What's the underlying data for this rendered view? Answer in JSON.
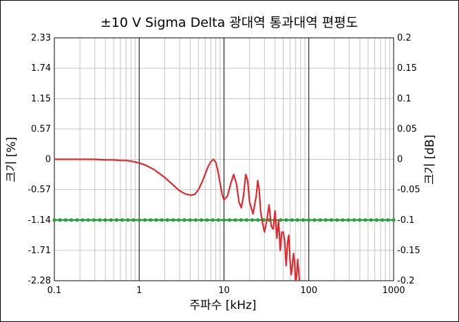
{
  "chart_data": {
    "type": "line",
    "title": "±10 V Sigma Delta 광대역 통과대역 편평도",
    "xlabel": "주파수 [kHz]",
    "ylabel_left": "크기 [%]",
    "ylabel_right": "크기 [dB]",
    "x_scale": "log",
    "xlim": [
      0.1,
      1000
    ],
    "x_ticks": [
      0.1,
      1,
      10,
      100,
      1000
    ],
    "x_tick_labels": [
      "0.1",
      "1",
      "10",
      "100",
      "1000"
    ],
    "y_left_ticks": [
      "2.33",
      "1.74",
      "1.15",
      "0.57",
      "0",
      "-0.57",
      "-1.14",
      "-1.71",
      "-2.28"
    ],
    "y_right_lim": [
      -0.2,
      0.2
    ],
    "y_right_ticks": [
      0.2,
      0.15,
      0.1,
      0.05,
      0,
      -0.05,
      -0.1,
      -0.15,
      -0.2
    ],
    "y_right_tick_labels": [
      "0.2",
      "0.15",
      "0.1",
      "0.05",
      "0",
      "-0.05",
      "-0.1",
      "-0.15",
      "-0.2"
    ],
    "grid": true,
    "series": [
      {
        "color": "#e0282e",
        "axis": "right",
        "x": [
          0.1,
          0.15,
          0.2,
          0.3,
          0.4,
          0.5,
          0.6,
          0.7,
          0.8,
          1.0,
          1.2,
          1.5,
          2.0,
          2.5,
          3.0,
          3.5,
          4.0,
          4.5,
          5.0,
          5.5,
          6.0,
          6.5,
          7.0,
          7.5,
          8.0,
          8.5,
          9.0,
          9.5,
          10,
          11,
          12,
          13,
          14,
          15,
          16,
          17,
          18,
          19,
          20,
          22,
          24,
          25,
          26,
          27,
          28,
          30,
          32,
          34,
          36,
          38,
          40,
          42,
          44,
          46,
          48,
          50,
          52,
          54,
          56,
          58,
          60,
          62,
          64,
          66,
          68,
          70,
          72,
          74,
          76,
          78
        ],
        "y": [
          0.0,
          0.0,
          0.0,
          0.0,
          -0.001,
          -0.001,
          -0.002,
          -0.002,
          -0.003,
          -0.006,
          -0.01,
          -0.017,
          -0.03,
          -0.042,
          -0.052,
          -0.057,
          -0.059,
          -0.058,
          -0.05,
          -0.038,
          -0.024,
          -0.012,
          -0.004,
          0.0,
          -0.005,
          -0.02,
          -0.04,
          -0.058,
          -0.067,
          -0.06,
          -0.04,
          -0.025,
          -0.04,
          -0.07,
          -0.08,
          -0.06,
          -0.025,
          -0.035,
          -0.07,
          -0.09,
          -0.06,
          -0.035,
          -0.05,
          -0.085,
          -0.1,
          -0.12,
          -0.1,
          -0.075,
          -0.11,
          -0.115,
          -0.085,
          -0.13,
          -0.1,
          -0.15,
          -0.12,
          -0.12,
          -0.135,
          -0.175,
          -0.14,
          -0.125,
          -0.165,
          -0.19,
          -0.175,
          -0.155,
          -0.17,
          -0.205,
          -0.19,
          -0.165,
          -0.185,
          -0.205
        ]
      },
      {
        "color": "#2e9e44",
        "axis": "right",
        "marker": "circle",
        "x": [
          0.1,
          1000
        ],
        "y": [
          -0.1,
          -0.1
        ]
      }
    ]
  }
}
